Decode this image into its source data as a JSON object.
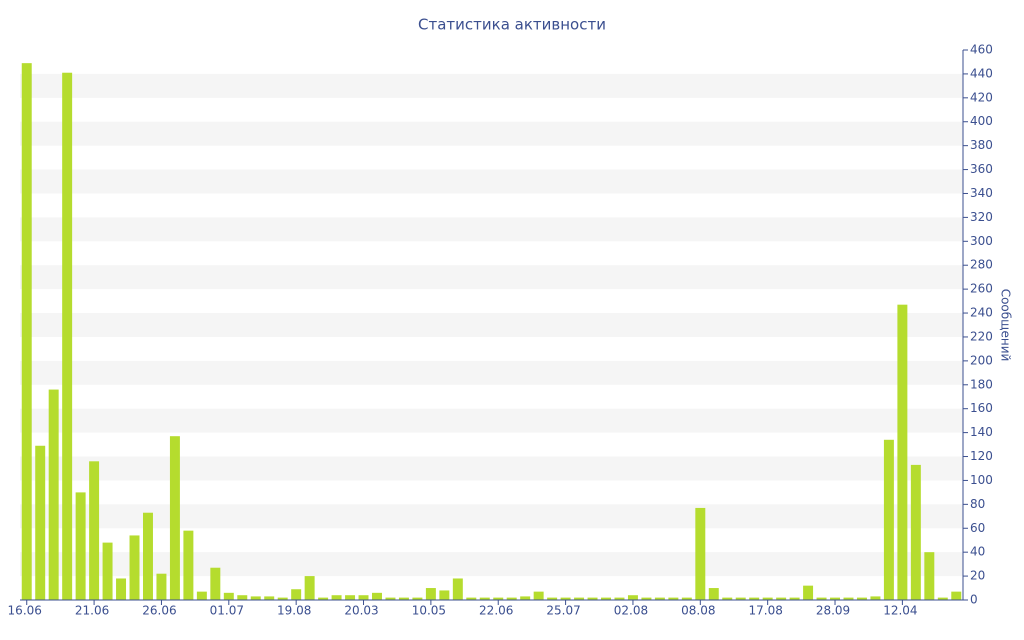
{
  "chart_data": {
    "type": "bar",
    "title": "Статистика активности",
    "ylabel": "Сообщений",
    "categories": [
      "16.06",
      null,
      null,
      null,
      null,
      "21.06",
      null,
      null,
      null,
      null,
      "26.06",
      null,
      null,
      null,
      null,
      "01.07",
      null,
      null,
      null,
      null,
      "19.08",
      null,
      null,
      null,
      null,
      "20.03",
      null,
      null,
      null,
      null,
      "10.05",
      null,
      null,
      null,
      null,
      "22.06",
      null,
      null,
      null,
      null,
      "25.07",
      null,
      null,
      null,
      null,
      "02.08",
      null,
      null,
      null,
      null,
      "08.08",
      null,
      null,
      null,
      null,
      "17.08",
      null,
      null,
      null,
      null,
      "28.09",
      null,
      null,
      null,
      null,
      "12.04",
      null,
      null,
      null,
      null
    ],
    "values": [
      449,
      129,
      176,
      441,
      90,
      116,
      48,
      18,
      54,
      73,
      22,
      137,
      58,
      7,
      27,
      6,
      4,
      3,
      3,
      2,
      9,
      20,
      2,
      4,
      4,
      4,
      6,
      2,
      2,
      2,
      10,
      8,
      18,
      2,
      2,
      2,
      2,
      3,
      7,
      2,
      2,
      2,
      2,
      2,
      2,
      4,
      2,
      2,
      2,
      2,
      77,
      10,
      2,
      2,
      2,
      2,
      2,
      2,
      12,
      2,
      2,
      2,
      2,
      3,
      134,
      247,
      113,
      40,
      2,
      7
    ],
    "color": "#b5dc2e",
    "ylim": [
      0,
      460
    ],
    "yticks": [
      0,
      20,
      40,
      60,
      80,
      100,
      120,
      140,
      160,
      180,
      200,
      220,
      240,
      260,
      280,
      300,
      320,
      340,
      360,
      380,
      400,
      420,
      440,
      460
    ],
    "grid": true,
    "y_axis_side": "right"
  }
}
